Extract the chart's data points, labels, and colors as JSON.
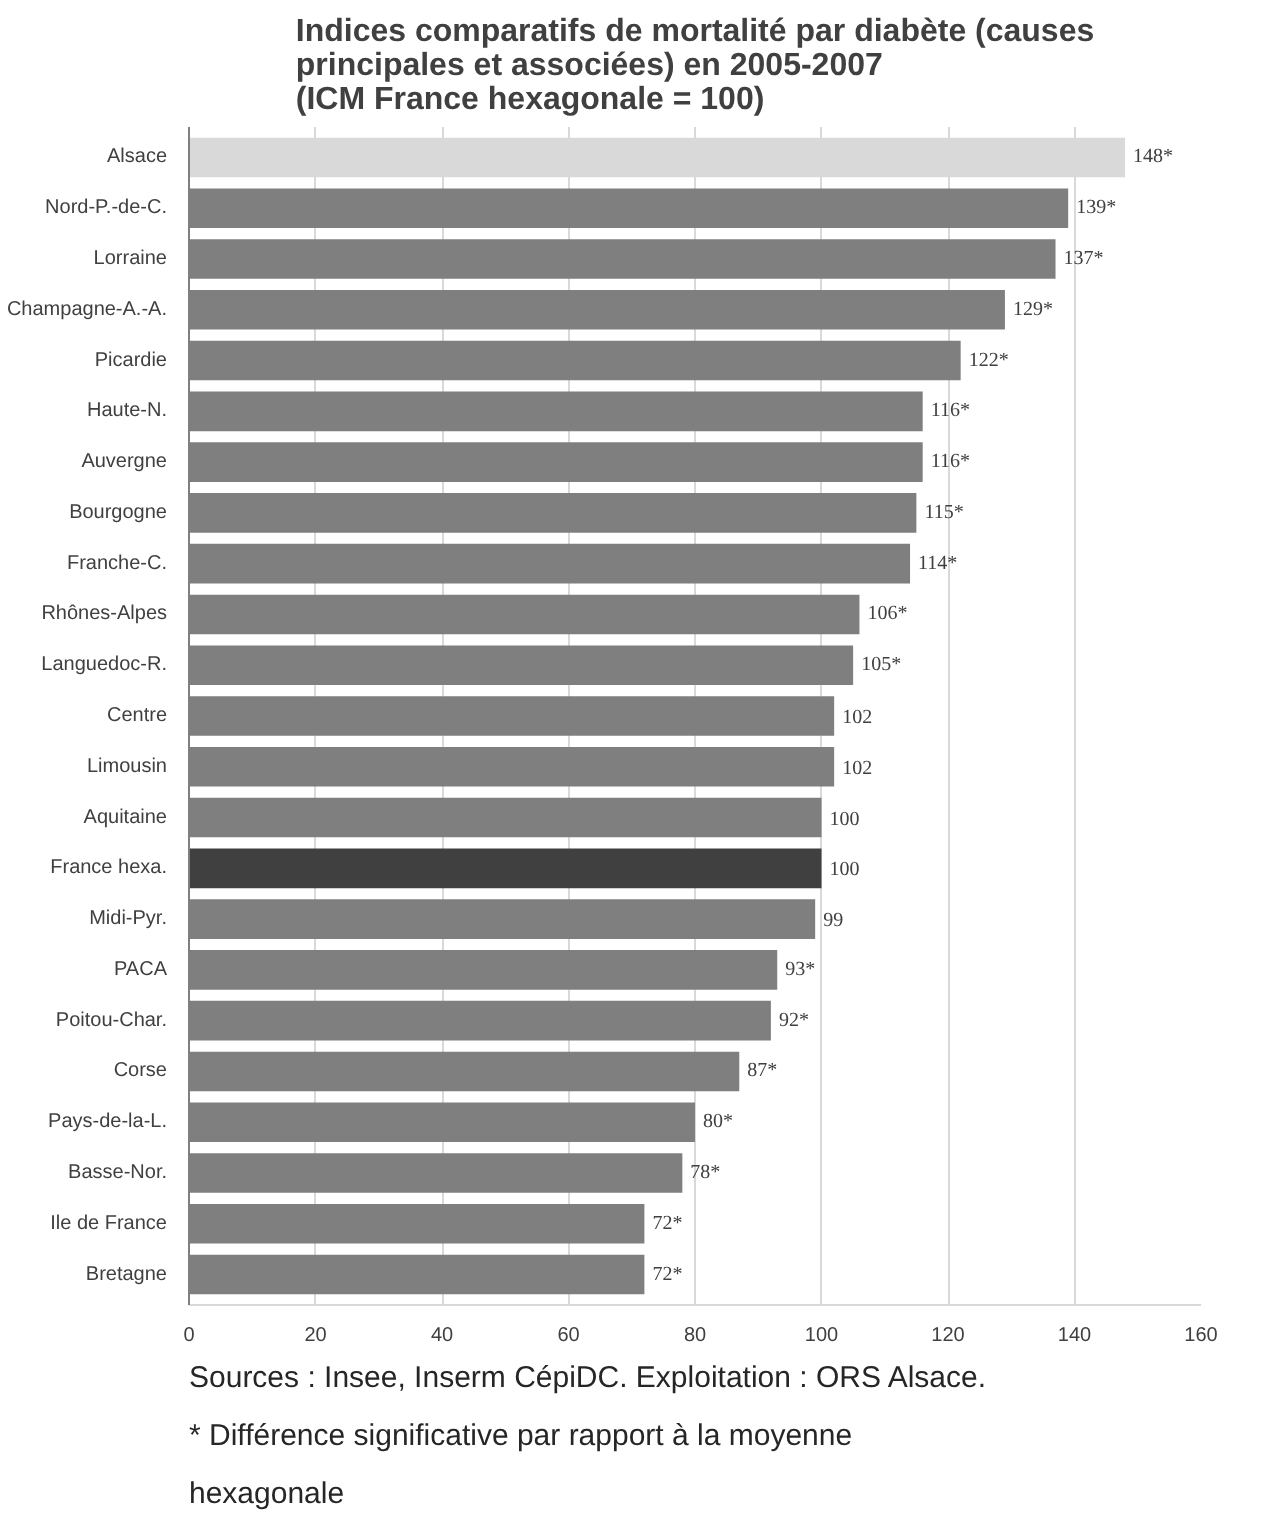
{
  "chart_data": {
    "type": "bar",
    "orientation": "horizontal",
    "title": "Indices comparatifs de mortalité par diabète (causes\nprincipales et associées) en 2005-2007\n(ICM France hexagonale = 100)",
    "categories": [
      "Alsace",
      "Nord-P.-de-C.",
      "Lorraine",
      "Champagne-A.-A.",
      "Picardie",
      "Haute-N.",
      "Auvergne",
      "Bourgogne",
      "Franche-C.",
      "Rhônes-Alpes",
      "Languedoc-R.",
      "Centre",
      "Limousin",
      "Aquitaine",
      "France hexa.",
      "Midi-Pyr.",
      "PACA",
      "Poitou-Char.",
      "Corse",
      "Pays-de-la-L.",
      "Basse-Nor.",
      "Ile de France",
      "Bretagne"
    ],
    "values": [
      148,
      139,
      137,
      129,
      122,
      116,
      116,
      115,
      114,
      106,
      105,
      102,
      102,
      100,
      100,
      99,
      93,
      92,
      87,
      80,
      78,
      72,
      72
    ],
    "value_labels": [
      "148*",
      "139*",
      "137*",
      "129*",
      "122*",
      "116*",
      "116*",
      "115*",
      "114*",
      "106*",
      "105*",
      "102",
      "102",
      "100",
      "100",
      "99",
      "93*",
      "92*",
      "87*",
      "80*",
      "78*",
      "72*",
      "72*"
    ],
    "colors": [
      "#d9d9d9",
      "#7f7f7f",
      "#7f7f7f",
      "#7f7f7f",
      "#7f7f7f",
      "#7f7f7f",
      "#7f7f7f",
      "#7f7f7f",
      "#7f7f7f",
      "#7f7f7f",
      "#7f7f7f",
      "#7f7f7f",
      "#7f7f7f",
      "#7f7f7f",
      "#404040",
      "#7f7f7f",
      "#7f7f7f",
      "#7f7f7f",
      "#7f7f7f",
      "#7f7f7f",
      "#7f7f7f",
      "#7f7f7f",
      "#7f7f7f"
    ],
    "xlim": [
      0,
      160
    ],
    "xticks": [
      0,
      20,
      40,
      60,
      80,
      100,
      120,
      140,
      160
    ],
    "grid": "x",
    "annotations": [
      "Sources : Insee, Inserm CépiDC. Exploitation : ORS Alsace.",
      "* Différence significative par rapport à la moyenne hexagonale"
    ]
  }
}
